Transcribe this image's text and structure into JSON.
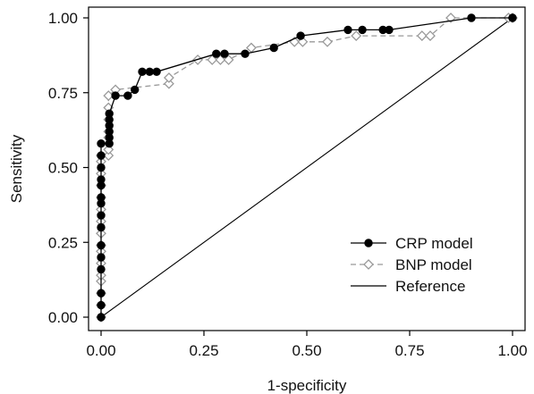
{
  "chart_data": {
    "type": "line",
    "title": "",
    "xlabel": "1-specificity",
    "ylabel": "Sensitivity",
    "xlim": [
      0,
      1
    ],
    "ylim": [
      0,
      1
    ],
    "x_ticks": [
      "0.00",
      "0.25",
      "0.50",
      "0.75",
      "1.00"
    ],
    "y_ticks": [
      "0.00",
      "0.25",
      "0.50",
      "0.75",
      "1.00"
    ],
    "grid": false,
    "legend_position": "bottom-right",
    "series": [
      {
        "name": "CRP model",
        "color": "#000000",
        "line_style": "solid",
        "marker": "filled-circle",
        "points": [
          [
            0.0,
            0.0
          ],
          [
            0.0,
            0.04
          ],
          [
            0.0,
            0.08
          ],
          [
            0.0,
            0.16
          ],
          [
            0.0,
            0.2
          ],
          [
            0.0,
            0.24
          ],
          [
            0.0,
            0.3
          ],
          [
            0.0,
            0.34
          ],
          [
            0.0,
            0.38
          ],
          [
            0.0,
            0.4
          ],
          [
            0.0,
            0.44
          ],
          [
            0.0,
            0.46
          ],
          [
            0.0,
            0.5
          ],
          [
            0.0,
            0.54
          ],
          [
            0.0,
            0.58
          ],
          [
            0.02,
            0.58
          ],
          [
            0.02,
            0.6
          ],
          [
            0.02,
            0.62
          ],
          [
            0.02,
            0.64
          ],
          [
            0.02,
            0.66
          ],
          [
            0.02,
            0.68
          ],
          [
            0.035,
            0.74
          ],
          [
            0.065,
            0.74
          ],
          [
            0.082,
            0.76
          ],
          [
            0.1,
            0.82
          ],
          [
            0.118,
            0.82
          ],
          [
            0.135,
            0.82
          ],
          [
            0.28,
            0.88
          ],
          [
            0.3,
            0.88
          ],
          [
            0.35,
            0.88
          ],
          [
            0.42,
            0.9
          ],
          [
            0.485,
            0.94
          ],
          [
            0.6,
            0.96
          ],
          [
            0.635,
            0.96
          ],
          [
            0.685,
            0.96
          ],
          [
            0.7,
            0.96
          ],
          [
            0.9,
            1.0
          ],
          [
            1.0,
            1.0
          ]
        ]
      },
      {
        "name": "BNP model",
        "color": "#999999",
        "line_style": "dashed",
        "marker": "open-diamond",
        "points": [
          [
            0.0,
            0.0
          ],
          [
            0.0,
            0.04
          ],
          [
            0.0,
            0.08
          ],
          [
            0.0,
            0.12
          ],
          [
            0.0,
            0.14
          ],
          [
            0.0,
            0.18
          ],
          [
            0.0,
            0.22
          ],
          [
            0.0,
            0.24
          ],
          [
            0.0,
            0.28
          ],
          [
            0.0,
            0.32
          ],
          [
            0.0,
            0.36
          ],
          [
            0.0,
            0.4
          ],
          [
            0.0,
            0.44
          ],
          [
            0.0,
            0.48
          ],
          [
            0.0,
            0.52
          ],
          [
            0.0,
            0.54
          ],
          [
            0.018,
            0.54
          ],
          [
            0.018,
            0.56
          ],
          [
            0.018,
            0.6
          ],
          [
            0.018,
            0.62
          ],
          [
            0.018,
            0.66
          ],
          [
            0.018,
            0.7
          ],
          [
            0.018,
            0.74
          ],
          [
            0.035,
            0.76
          ],
          [
            0.165,
            0.78
          ],
          [
            0.165,
            0.8
          ],
          [
            0.235,
            0.86
          ],
          [
            0.27,
            0.86
          ],
          [
            0.29,
            0.86
          ],
          [
            0.31,
            0.86
          ],
          [
            0.365,
            0.9
          ],
          [
            0.47,
            0.92
          ],
          [
            0.49,
            0.92
          ],
          [
            0.55,
            0.92
          ],
          [
            0.62,
            0.94
          ],
          [
            0.78,
            0.94
          ],
          [
            0.8,
            0.94
          ],
          [
            0.85,
            1.0
          ],
          [
            0.99,
            1.0
          ],
          [
            1.0,
            1.0
          ]
        ]
      },
      {
        "name": "Reference",
        "color": "#000000",
        "line_style": "solid",
        "marker": "none",
        "points": [
          [
            0.0,
            0.0
          ],
          [
            1.0,
            1.0
          ]
        ]
      }
    ]
  }
}
